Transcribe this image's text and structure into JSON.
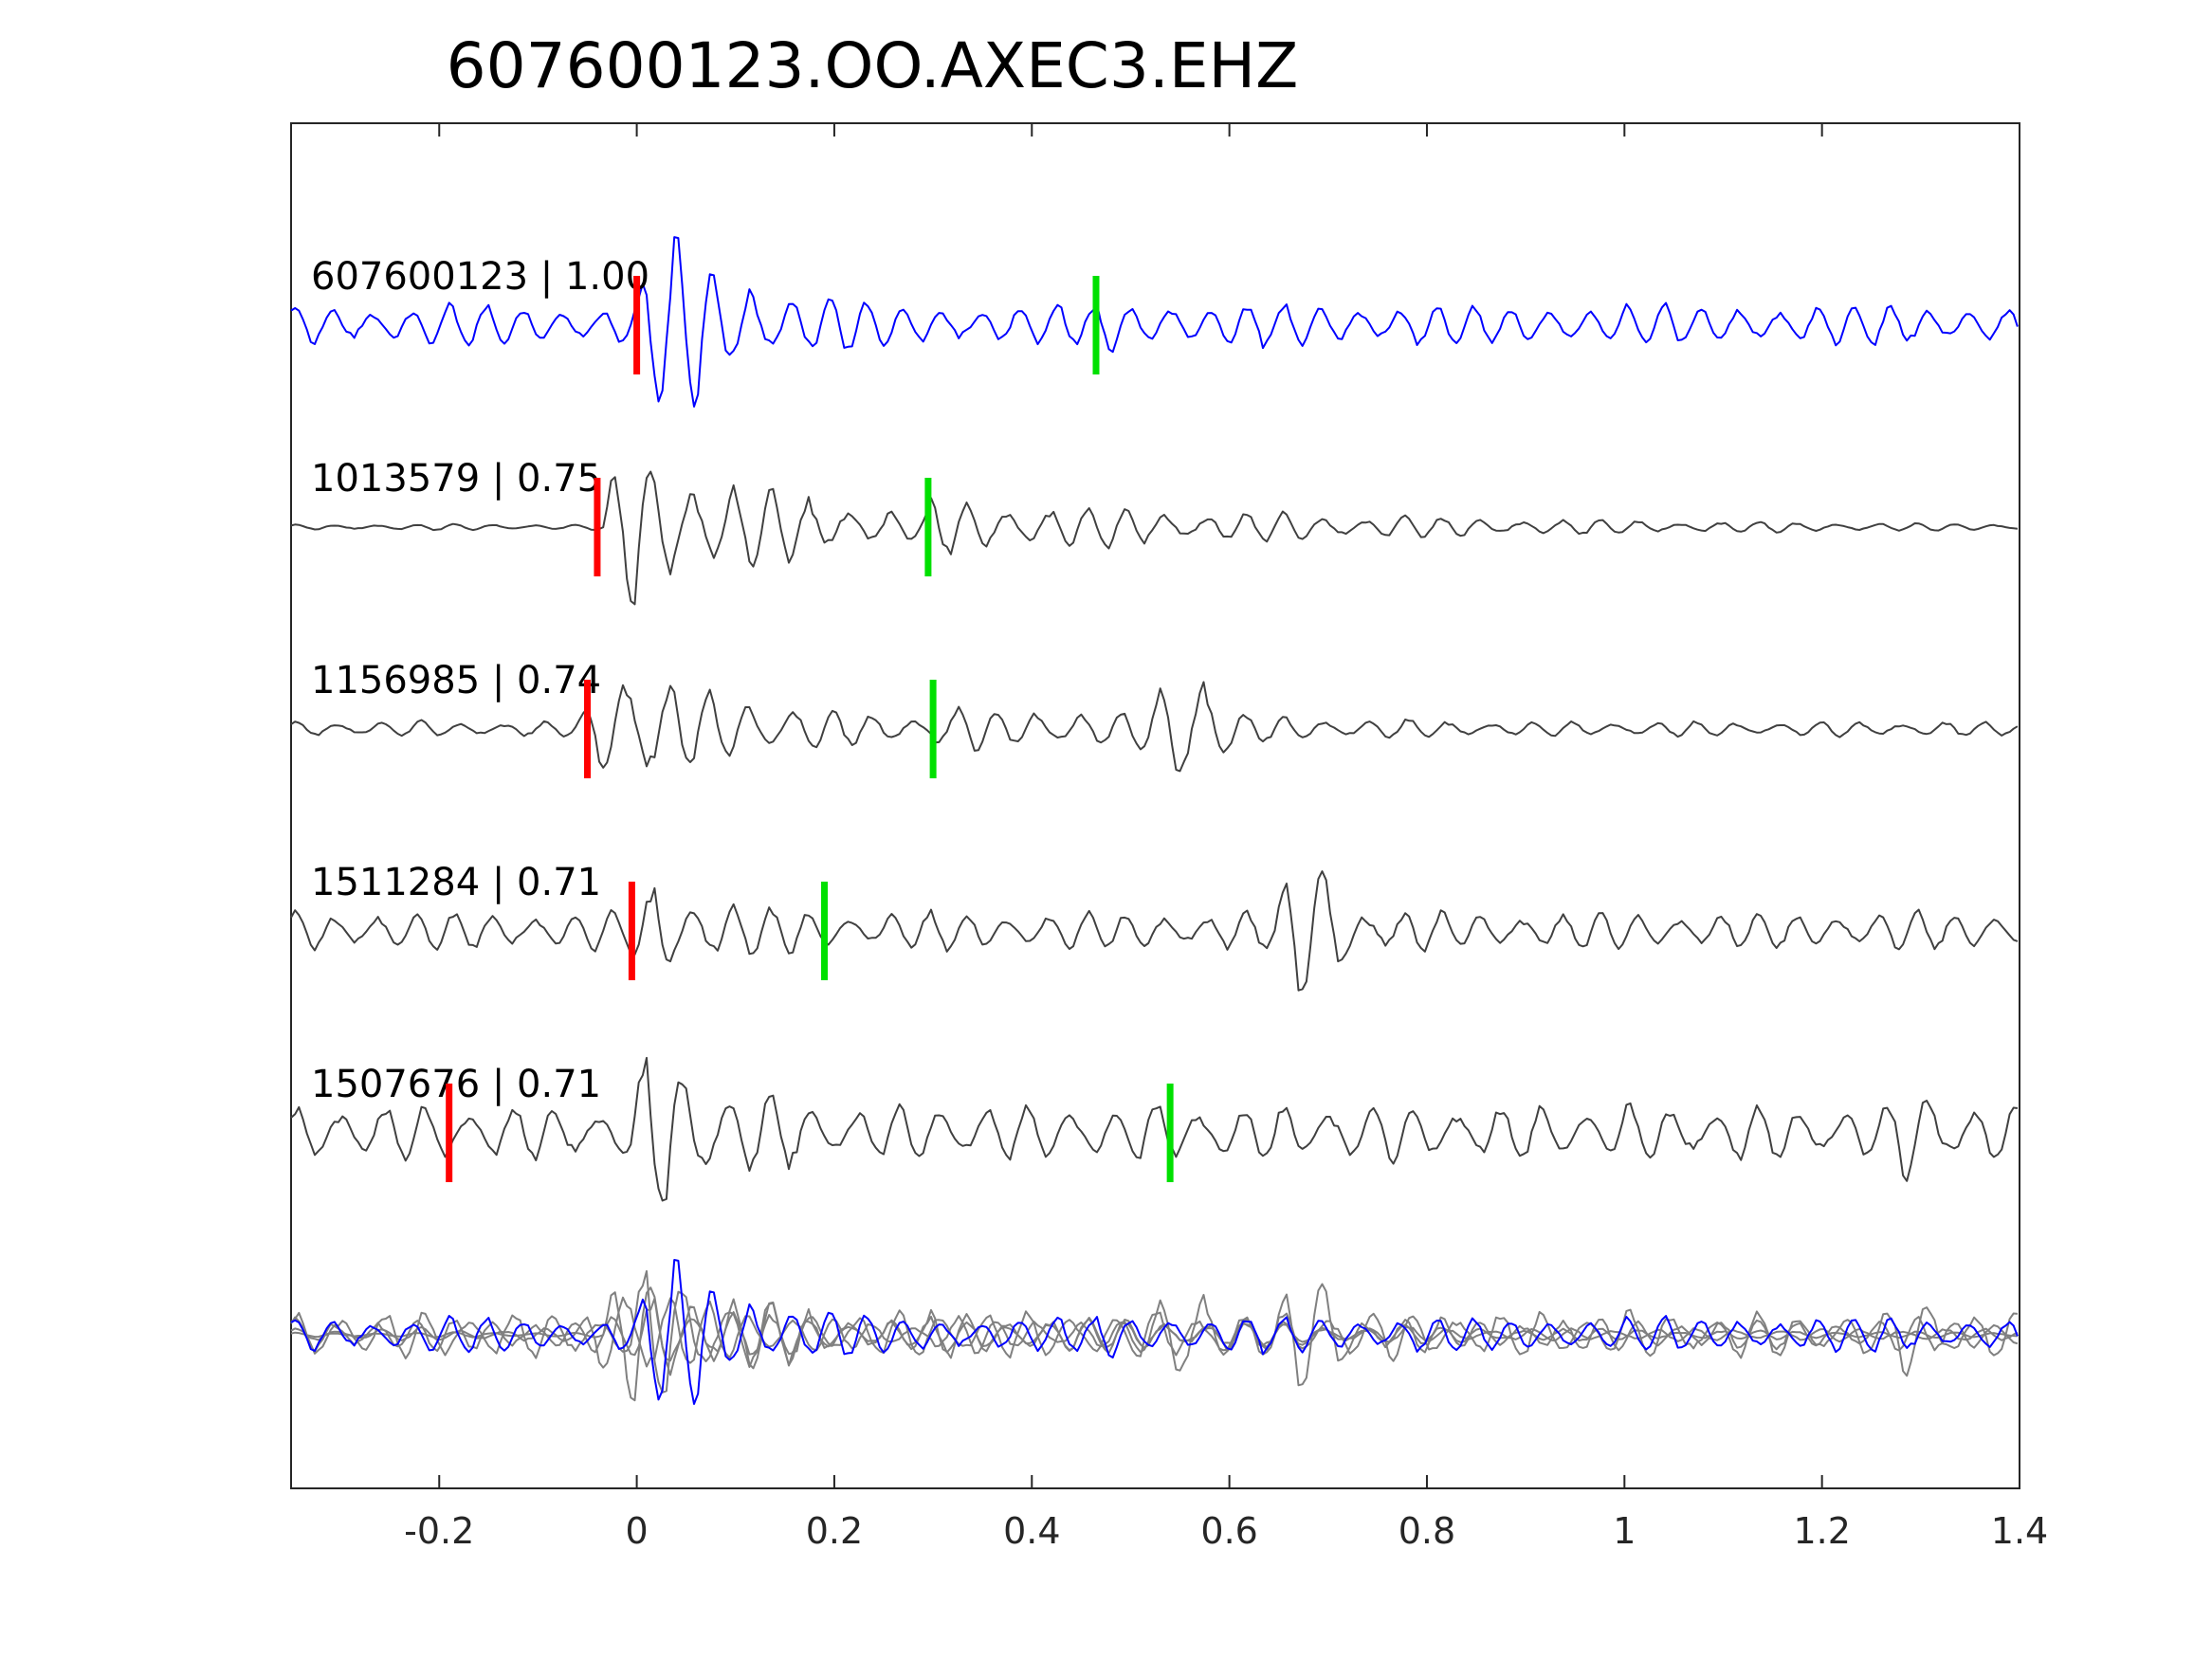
{
  "chart_data": {
    "type": "line",
    "title": "607600123.OO.AXEC3.EHZ",
    "xlabel": "",
    "ylabel": "",
    "xlim": [
      -0.35,
      1.4
    ],
    "xticks": [
      -0.2,
      0,
      0.2,
      0.4,
      0.6,
      0.8,
      1,
      1.2,
      1.4
    ],
    "xtick_labels": [
      "-0.2",
      "0",
      "0.2",
      "0.4",
      "0.6",
      "0.8",
      "1",
      "1.2",
      "1.4"
    ],
    "grid": false,
    "colors": {
      "template": "#0000ff",
      "match": "#404040",
      "overlay": "#808080",
      "p_pick": "#ff0000",
      "s_pick": "#00e000",
      "axes": "#262626"
    },
    "series": [
      {
        "name": "607600123 | 1.00",
        "event_id": "607600123",
        "correlation": 1.0,
        "color": "#0000ff",
        "p_pick": 0.0,
        "s_pick": 0.465,
        "onset": -0.05,
        "peak": 0.03,
        "amplitude": 1.0,
        "noise": 0.22,
        "freq": 26,
        "burst": null
      },
      {
        "name": "1013579 | 0.75",
        "event_id": "1013579",
        "correlation": 0.75,
        "color": "#404040",
        "p_pick": -0.04,
        "s_pick": 0.295,
        "onset": -0.03,
        "peak": 0.0,
        "amplitude": 1.0,
        "noise": 0.03,
        "freq": 25,
        "burst": null
      },
      {
        "name": "1156985 | 0.74",
        "event_id": "1156985",
        "correlation": 0.74,
        "color": "#404040",
        "p_pick": -0.05,
        "s_pick": 0.3,
        "onset": -0.06,
        "peak": -0.02,
        "amplitude": 0.85,
        "noise": 0.08,
        "freq": 24,
        "burst": {
          "t": 0.56,
          "amplitude": 1.0
        }
      },
      {
        "name": "1511284 | 0.71",
        "event_id": "1511284",
        "correlation": 0.71,
        "color": "#404040",
        "p_pick": -0.005,
        "s_pick": 0.19,
        "onset": -0.02,
        "peak": 0.02,
        "amplitude": 0.6,
        "noise": 0.2,
        "freq": 25,
        "burst": {
          "t": 0.69,
          "amplitude": 1.0
        }
      },
      {
        "name": "1507676 | 0.71",
        "event_id": "1507676",
        "correlation": 0.71,
        "color": "#404040",
        "p_pick": -0.19,
        "s_pick": 0.54,
        "onset": -0.25,
        "peak": 0.02,
        "amplitude": 1.0,
        "noise": 0.3,
        "freq": 23,
        "burst": {
          "t": 1.3,
          "amplitude": 0.6
        }
      }
    ]
  }
}
